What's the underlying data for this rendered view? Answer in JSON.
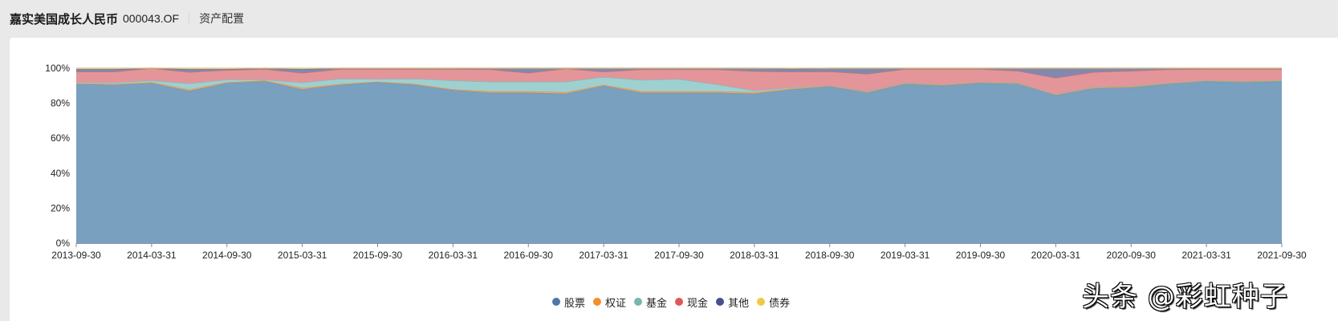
{
  "header": {
    "fund_name": "嘉实美国成长人民币",
    "fund_code": "000043.OF",
    "section_title": "资产配置"
  },
  "watermark": "头条 @彩虹种子",
  "legend": [
    {
      "name": "股票",
      "color": "#4e79a7"
    },
    {
      "name": "权证",
      "color": "#f28e2c"
    },
    {
      "name": "基金",
      "color": "#76b7b2"
    },
    {
      "name": "现金",
      "color": "#e15759"
    },
    {
      "name": "其他",
      "color": "#484f8a"
    },
    {
      "name": "债券",
      "color": "#edc948"
    }
  ],
  "chart_data": {
    "type": "area",
    "stacked": true,
    "title": "资产配置",
    "xlabel": "",
    "ylabel": "",
    "ylim": [
      0,
      100
    ],
    "y_ticks": [
      "0%",
      "20%",
      "40%",
      "60%",
      "80%",
      "100%"
    ],
    "x_tick_labels": [
      "2013-09-30",
      "2014-03-31",
      "2014-09-30",
      "2015-03-31",
      "2015-09-30",
      "2016-03-31",
      "2016-09-30",
      "2017-03-31",
      "2017-09-30",
      "2018-03-31",
      "2018-09-30",
      "2019-03-31",
      "2019-09-30",
      "2020-03-31",
      "2020-09-30",
      "2021-03-31",
      "2021-09-30"
    ],
    "x": [
      "2013-09-30",
      "2013-12-31",
      "2014-03-31",
      "2014-06-30",
      "2014-09-30",
      "2014-12-31",
      "2015-03-31",
      "2015-06-30",
      "2015-09-30",
      "2015-12-31",
      "2016-03-31",
      "2016-06-30",
      "2016-09-30",
      "2016-12-31",
      "2017-03-31",
      "2017-06-30",
      "2017-09-30",
      "2017-12-31",
      "2018-03-31",
      "2018-06-30",
      "2018-09-30",
      "2018-12-31",
      "2019-03-31",
      "2019-06-30",
      "2019-09-30",
      "2019-12-31",
      "2020-03-31",
      "2020-06-30",
      "2020-09-30",
      "2020-12-31",
      "2021-03-31",
      "2021-06-30",
      "2021-09-30"
    ],
    "grid": false,
    "legend_position": "bottom",
    "series": [
      {
        "name": "股票",
        "values": [
          91,
          90.5,
          91.5,
          87,
          91.5,
          92.5,
          88,
          90.5,
          92,
          90.5,
          87.5,
          86,
          86,
          85.5,
          90,
          86,
          86,
          86,
          85.5,
          88,
          89.5,
          86,
          91,
          90,
          91.5,
          91,
          84.5,
          88.5,
          89,
          91,
          92.5,
          92,
          92.5
        ]
      },
      {
        "name": "权证",
        "values": [
          0.5,
          0.5,
          0.5,
          0.8,
          0.5,
          0.5,
          0.8,
          0.5,
          0.3,
          0.5,
          0.5,
          0.8,
          0.8,
          0.8,
          0.5,
          0.8,
          0.8,
          0.8,
          0.8,
          0.5,
          0.3,
          0.5,
          0.3,
          0.5,
          0.3,
          0.5,
          0.3,
          0.5,
          0.5,
          0.3,
          0.3,
          0.3,
          0.3
        ]
      },
      {
        "name": "基金",
        "values": [
          0.5,
          0.8,
          1,
          3.5,
          1.5,
          0.5,
          3,
          3,
          1.5,
          3,
          5,
          5.5,
          5.5,
          6,
          4.5,
          6.5,
          7,
          4,
          1,
          0.5,
          0.3,
          0.3,
          0.3,
          0.3,
          0.3,
          0.3,
          0.3,
          0.3,
          0.3,
          0.3,
          0.3,
          0.3,
          0.3
        ]
      },
      {
        "name": "现金",
        "values": [
          6,
          6.2,
          7,
          6.5,
          5.5,
          6,
          5.5,
          5.5,
          5.7,
          5.5,
          6.5,
          7,
          5,
          7.5,
          3,
          6,
          5.5,
          8.5,
          11,
          9,
          8,
          10,
          7.9,
          8.7,
          7.4,
          6.7,
          9.4,
          8.5,
          8.7,
          7.7,
          6.4,
          6.9,
          6.4
        ]
      },
      {
        "name": "其他",
        "values": [
          1.5,
          1.5,
          0,
          1.7,
          0.5,
          0.5,
          2.2,
          0.5,
          0.5,
          0.5,
          0.5,
          0.7,
          2.7,
          0.2,
          2,
          0.7,
          0.7,
          0.7,
          1.7,
          1.7,
          1.9,
          3.2,
          0.5,
          0.5,
          0.5,
          1.5,
          5.5,
          2.2,
          1.5,
          0.7,
          0.5,
          0.5,
          0.5
        ]
      },
      {
        "name": "债券",
        "values": [
          0.5,
          0.5,
          0,
          0.5,
          0.5,
          0,
          0.5,
          0,
          0,
          0,
          0,
          0,
          0,
          0,
          0,
          0,
          0,
          0,
          0,
          0.3,
          0,
          0,
          0,
          0,
          0,
          0,
          0,
          0,
          0,
          0,
          0,
          0,
          0
        ]
      }
    ]
  }
}
